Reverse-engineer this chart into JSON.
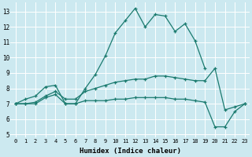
{
  "xlabel": "Humidex (Indice chaleur)",
  "bg_color": "#cce9f0",
  "line_color": "#1a7a6e",
  "grid_color": "#ffffff",
  "xlim": [
    -0.5,
    23.5
  ],
  "ylim": [
    4.8,
    13.6
  ],
  "xticks": [
    0,
    1,
    2,
    3,
    4,
    5,
    6,
    7,
    8,
    9,
    10,
    11,
    12,
    13,
    14,
    15,
    16,
    17,
    18,
    19,
    20,
    21,
    22,
    23
  ],
  "yticks": [
    5,
    6,
    7,
    8,
    9,
    10,
    11,
    12,
    13
  ],
  "curve1_x": [
    0,
    1,
    2,
    3,
    4,
    5,
    6,
    7,
    8,
    9,
    10,
    11,
    12,
    13,
    14,
    15,
    16,
    17,
    18,
    19
  ],
  "curve1_y": [
    7.0,
    7.3,
    7.5,
    8.1,
    8.2,
    7.0,
    7.0,
    8.0,
    8.9,
    10.1,
    11.6,
    12.4,
    13.2,
    12.0,
    12.8,
    12.7,
    11.7,
    12.2,
    11.1,
    9.3
  ],
  "curve2_x": [
    0,
    1,
    2,
    3,
    4,
    5,
    6,
    7,
    8,
    9,
    10,
    11,
    12,
    13,
    14,
    15,
    16,
    17,
    18,
    19,
    20,
    21,
    22,
    23
  ],
  "curve2_y": [
    7.0,
    7.0,
    7.1,
    7.5,
    7.8,
    7.3,
    7.3,
    7.8,
    8.0,
    8.2,
    8.4,
    8.5,
    8.6,
    8.6,
    8.8,
    8.8,
    8.7,
    8.6,
    8.5,
    8.5,
    9.3,
    6.6,
    6.8,
    7.0
  ],
  "curve3_x": [
    0,
    1,
    2,
    3,
    4,
    5,
    6,
    7,
    8,
    9,
    10,
    11,
    12,
    13,
    14,
    15,
    16,
    17,
    18,
    19,
    20,
    21,
    22,
    23
  ],
  "curve3_y": [
    7.0,
    7.0,
    7.0,
    7.4,
    7.6,
    7.0,
    7.0,
    7.2,
    7.2,
    7.2,
    7.3,
    7.3,
    7.4,
    7.4,
    7.4,
    7.4,
    7.3,
    7.3,
    7.2,
    7.1,
    5.5,
    5.5,
    6.5,
    7.0
  ]
}
